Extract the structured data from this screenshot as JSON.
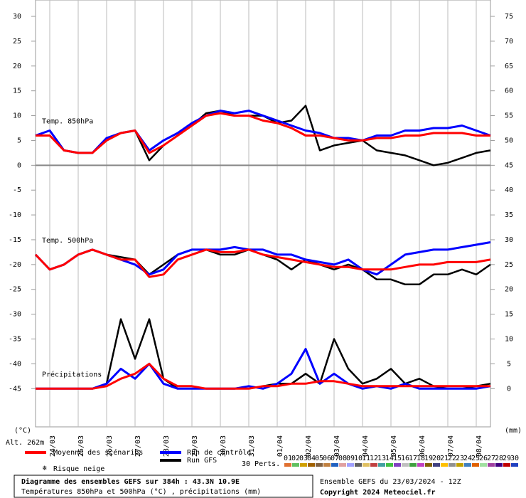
{
  "chart_data": {
    "type": "line",
    "categories": [
      null,
      "24/03",
      null,
      "25/03",
      null,
      "26/03",
      null,
      "27/03",
      null,
      "28/03",
      null,
      "29/03",
      null,
      "30/03",
      null,
      "31/03",
      null,
      "01/04",
      null,
      "02/04",
      null,
      "03/04",
      null,
      "04/04",
      null,
      "05/04",
      null,
      "06/04",
      null,
      "07/04",
      null,
      "08/04",
      null
    ],
    "ylim": [
      -52.7,
      33.3
    ],
    "yticks": [
      -45,
      -40,
      -35,
      -30,
      -25,
      -20,
      -15,
      -10,
      -5,
      0,
      5,
      10,
      15,
      20,
      25,
      30
    ],
    "y2lim": [
      -7.7,
      78.3
    ],
    "y2ticks": [
      0,
      5,
      10,
      15,
      20,
      25,
      30,
      35,
      40,
      45,
      50,
      55,
      60,
      65,
      70,
      75
    ],
    "y_unit": "(°C)",
    "y2_unit": "(mm)",
    "altitude": "Alt. 262m",
    "grid": true,
    "panels": [
      {
        "label": "Temp. 850hPa",
        "axis": "y"
      },
      {
        "label": "Temp. 500hPa",
        "axis": "y"
      },
      {
        "label": "Précipitations",
        "axis": "y2"
      }
    ],
    "series": [
      {
        "name": "Moyenne des scénarios",
        "color": "#ff0000",
        "values": [
          [
            6,
            6,
            3,
            2.5,
            2.5,
            5,
            6.5,
            7,
            2.5,
            4,
            6,
            8,
            10,
            10.5,
            10,
            10,
            9,
            8.5,
            7.5,
            6,
            6,
            5.5,
            5,
            5,
            5.5,
            5.5,
            6,
            6,
            6.5,
            6.5,
            6.5,
            6,
            6
          ],
          [
            -18,
            -21,
            -20,
            -18,
            -17,
            -18,
            -19,
            -19,
            -22.5,
            -22,
            -19,
            -18,
            -17,
            -17.5,
            -17.5,
            -17,
            -18,
            -18.5,
            -19,
            -19.5,
            -20,
            -20.5,
            -20.5,
            -21,
            -21,
            -21,
            -20.5,
            -20,
            -20,
            -19.5,
            -19.5,
            -19.5,
            -19
          ],
          [
            0,
            0,
            0,
            0,
            0,
            0.5,
            2,
            3,
            5,
            2,
            0.5,
            0.5,
            0,
            0,
            0,
            0,
            0.5,
            0.5,
            1,
            1,
            1.5,
            1.5,
            1,
            0.5,
            0.5,
            0.5,
            0.5,
            0.5,
            0.5,
            0.5,
            0.5,
            0.5,
            0.5
          ]
        ]
      },
      {
        "name": "Run de contrôle",
        "color": "#0000ff",
        "values": [
          [
            6,
            7,
            3,
            2.5,
            2.5,
            5.5,
            6.5,
            7,
            3,
            5,
            6.5,
            8.5,
            10,
            11,
            10.5,
            11,
            10,
            9,
            8,
            7,
            6.5,
            5.5,
            5.5,
            5,
            6,
            6,
            7,
            7,
            7.5,
            7.5,
            8,
            7,
            6
          ],
          [
            -18,
            -21,
            -20,
            -18,
            -17,
            -18,
            -19,
            -20,
            -22,
            -21,
            -18,
            -17,
            -17,
            -17,
            -16.5,
            -17,
            -17,
            -18,
            -18,
            -19,
            -19.5,
            -20,
            -19,
            -21,
            -22,
            -20,
            -18,
            -17.5,
            -17,
            -17,
            -16.5,
            -16,
            -15.5
          ],
          [
            0,
            0,
            0,
            0,
            0,
            1,
            4,
            2,
            5,
            1,
            0,
            0,
            0,
            0,
            0,
            0.5,
            0,
            1,
            3,
            8,
            1,
            3,
            1,
            0,
            0.5,
            0,
            1,
            0,
            0,
            0,
            0,
            0,
            0.5
          ]
        ]
      },
      {
        "name": "Run GFS",
        "color": "#000000",
        "values": [
          [
            6,
            7,
            3,
            2.5,
            2.5,
            5,
            6.5,
            7,
            1,
            4,
            6,
            8,
            10.5,
            11,
            10,
            10,
            10,
            8.5,
            9,
            12,
            3,
            4,
            4.5,
            5,
            3,
            2.5,
            2,
            1,
            0,
            0.5,
            1.5,
            2.5,
            3
          ],
          [
            -18,
            -21,
            -20,
            -18,
            -17,
            -18,
            -18.5,
            -19,
            -22,
            -20,
            -18,
            -17,
            -17,
            -18,
            -18,
            -17,
            -18,
            -19,
            -21,
            -19,
            -20,
            -21,
            -20,
            -21,
            -23,
            -23,
            -24,
            -24,
            -22,
            -22,
            -21,
            -22,
            -20
          ],
          [
            0,
            0,
            0,
            0,
            0,
            1,
            14,
            6,
            14,
            2,
            0,
            0,
            0,
            0,
            0,
            0,
            0.5,
            1,
            1,
            3,
            1,
            10,
            4,
            1,
            2,
            4,
            1,
            2,
            0.5,
            0,
            0,
            0.5,
            1
          ]
        ]
      }
    ],
    "snow_label": "Risque neige",
    "perturbations_label": "30 Perts.",
    "perturbations": [
      {
        "label": "01",
        "color": "#e07030"
      },
      {
        "label": "02",
        "color": "#60c060"
      },
      {
        "label": "03",
        "color": "#d0a000"
      },
      {
        "label": "04",
        "color": "#a06000"
      },
      {
        "label": "05",
        "color": "#806040"
      },
      {
        "label": "06",
        "color": "#c08040"
      },
      {
        "label": "07",
        "color": "#2060c0"
      },
      {
        "label": "08",
        "color": "#e0a0a0"
      },
      {
        "label": "09",
        "color": "#a0a0ff"
      },
      {
        "label": "10",
        "color": "#606060"
      },
      {
        "label": "11",
        "color": "#e0c060"
      },
      {
        "label": "12",
        "color": "#c04040"
      },
      {
        "label": "13",
        "color": "#40a0a0"
      },
      {
        "label": "14",
        "color": "#40c040"
      },
      {
        "label": "15",
        "color": "#8040c0"
      },
      {
        "label": "16",
        "color": "#c0c0c0"
      },
      {
        "label": "17",
        "color": "#40a040"
      },
      {
        "label": "18",
        "color": "#c040c0"
      },
      {
        "label": "19",
        "color": "#806000"
      },
      {
        "label": "20",
        "color": "#404080"
      },
      {
        "label": "21",
        "color": "#ffc000"
      },
      {
        "label": "22",
        "color": "#909090"
      },
      {
        "label": "23",
        "color": "#c0a000"
      },
      {
        "label": "24",
        "color": "#4080c0"
      },
      {
        "label": "25",
        "color": "#e06000"
      },
      {
        "label": "26",
        "color": "#a0e0a0"
      },
      {
        "label": "27",
        "color": "#a040a0"
      },
      {
        "label": "28",
        "color": "#400080"
      },
      {
        "label": "29",
        "color": "#c00000"
      },
      {
        "label": "30",
        "color": "#2040c0"
      }
    ],
    "footer_title": "Diagramme des ensembles GEFS sur 384h : 43.3N 10.9E",
    "footer_subtitle": "Températures 850hPa et 500hPa (°C) , précipitations (mm)",
    "run_info": "Ensemble GEFS du 23/03/2024 - 12Z",
    "copyright": "Copyright 2024 Meteociel.fr"
  }
}
